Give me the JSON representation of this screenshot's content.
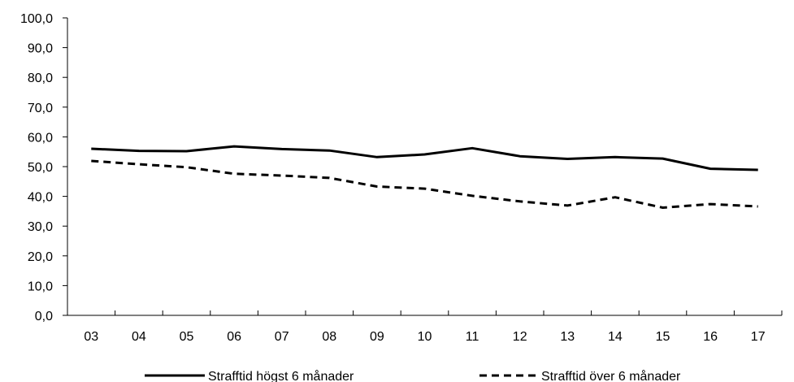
{
  "chart_data": {
    "type": "line",
    "title": "",
    "xlabel": "",
    "ylabel": "",
    "categories": [
      "03",
      "04",
      "05",
      "06",
      "07",
      "08",
      "09",
      "10",
      "11",
      "12",
      "13",
      "14",
      "15",
      "16",
      "17"
    ],
    "ylim": [
      0,
      100
    ],
    "yticks": [
      "0,0",
      "10,0",
      "20,0",
      "30,0",
      "40,0",
      "50,0",
      "60,0",
      "70,0",
      "80,0",
      "90,0",
      "100,0"
    ],
    "grid": false,
    "legend_position": "bottom",
    "series": [
      {
        "name": "Strafftid högst 6 månader",
        "style": "solid",
        "color": "#000000",
        "values": [
          56.0,
          55.3,
          55.2,
          56.8,
          55.9,
          55.4,
          53.2,
          54.1,
          56.2,
          53.5,
          52.6,
          53.2,
          52.7,
          49.3,
          48.9
        ]
      },
      {
        "name": "Strafftid över 6 månader",
        "style": "dashed",
        "color": "#000000",
        "values": [
          51.9,
          50.8,
          49.8,
          47.6,
          47.0,
          46.2,
          43.3,
          42.6,
          40.2,
          38.3,
          36.9,
          39.7,
          36.2,
          37.4,
          36.6
        ]
      }
    ]
  }
}
